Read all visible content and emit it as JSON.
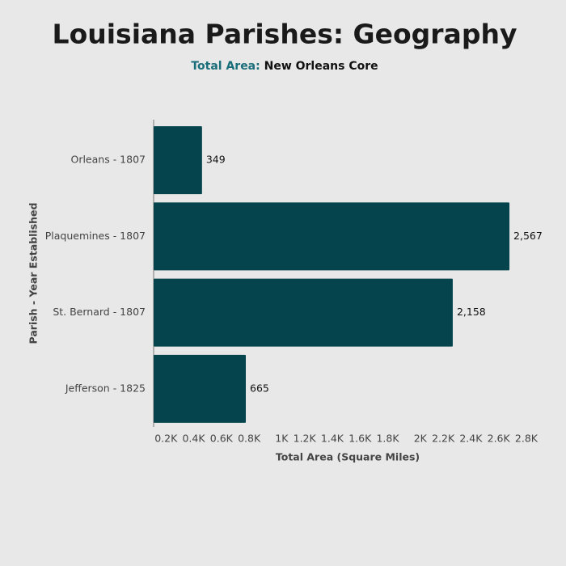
{
  "chart_data": {
    "type": "bar",
    "orientation": "horizontal",
    "title": "Louisiana Parishes: Geography",
    "subtitle_label": "Total Area:",
    "subtitle": "New Orleans Core",
    "categories": [
      "Orleans - 1807",
      "Plaquemines - 1807",
      "St. Bernard - 1807",
      "Jefferson - 1825"
    ],
    "values": [
      349,
      2567,
      2158,
      665
    ],
    "value_labels": [
      "349",
      "2,567",
      "2,158",
      "665"
    ],
    "color": "#05444c",
    "xlabel": "Total Area (Square Miles)",
    "ylabel": "Parish - Year Established",
    "xlim": [
      0,
      2800
    ],
    "xticks": [
      {
        "value": 200,
        "label": "0.2K"
      },
      {
        "value": 400,
        "label": "0.4K"
      },
      {
        "value": 600,
        "label": "0.6K"
      },
      {
        "value": 800,
        "label": "0.8K"
      },
      {
        "value": 1000,
        "label": "1K"
      },
      {
        "value": 1200,
        "label": "1.2K"
      },
      {
        "value": 1400,
        "label": "1.4K"
      },
      {
        "value": 1600,
        "label": "1.6K"
      },
      {
        "value": 1800,
        "label": "1.8K"
      },
      {
        "value": 2000,
        "label": "2K"
      },
      {
        "value": 2200,
        "label": "2.2K"
      },
      {
        "value": 2400,
        "label": "2.4K"
      },
      {
        "value": 2600,
        "label": "2.6K"
      },
      {
        "value": 2800,
        "label": "2.8K"
      }
    ],
    "grid": false
  }
}
